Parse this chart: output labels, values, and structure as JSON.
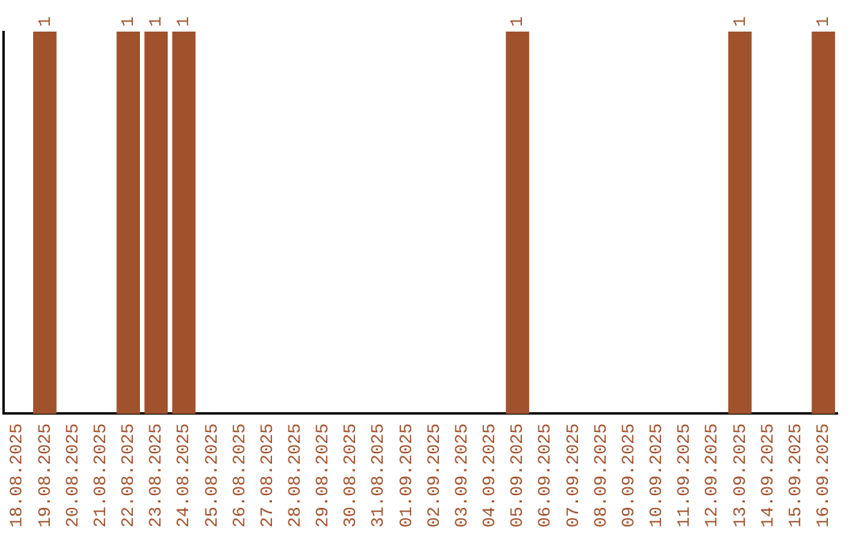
{
  "chart_data": {
    "type": "bar",
    "color": "#a0522d",
    "ylim": [
      0,
      1
    ],
    "tick_labels": "x",
    "categories": [
      "18.08.2025",
      "19.08.2025",
      "20.08.2025",
      "21.08.2025",
      "22.08.2025",
      "23.08.2025",
      "24.08.2025",
      "25.08.2025",
      "26.08.2025",
      "27.08.2025",
      "28.08.2025",
      "29.08.2025",
      "30.08.2025",
      "31.08.2025",
      "01.09.2025",
      "02.09.2025",
      "03.09.2025",
      "04.09.2025",
      "05.09.2025",
      "06.09.2025",
      "07.09.2025",
      "08.09.2025",
      "09.09.2025",
      "10.09.2025",
      "11.09.2025",
      "12.09.2025",
      "13.09.2025",
      "14.09.2025",
      "15.09.2025",
      "16.09.2025"
    ],
    "values": [
      0,
      1,
      0,
      0,
      1,
      1,
      1,
      0,
      0,
      0,
      0,
      0,
      0,
      0,
      0,
      0,
      0,
      0,
      1,
      0,
      0,
      0,
      0,
      0,
      0,
      0,
      1,
      0,
      0,
      1
    ],
    "value_labels": [
      null,
      "1",
      null,
      null,
      "1",
      "1",
      "1",
      null,
      null,
      null,
      null,
      null,
      null,
      null,
      null,
      null,
      null,
      null,
      "1",
      null,
      null,
      null,
      null,
      null,
      null,
      null,
      "1",
      null,
      null,
      "1"
    ],
    "grid": false,
    "legend": false
  }
}
